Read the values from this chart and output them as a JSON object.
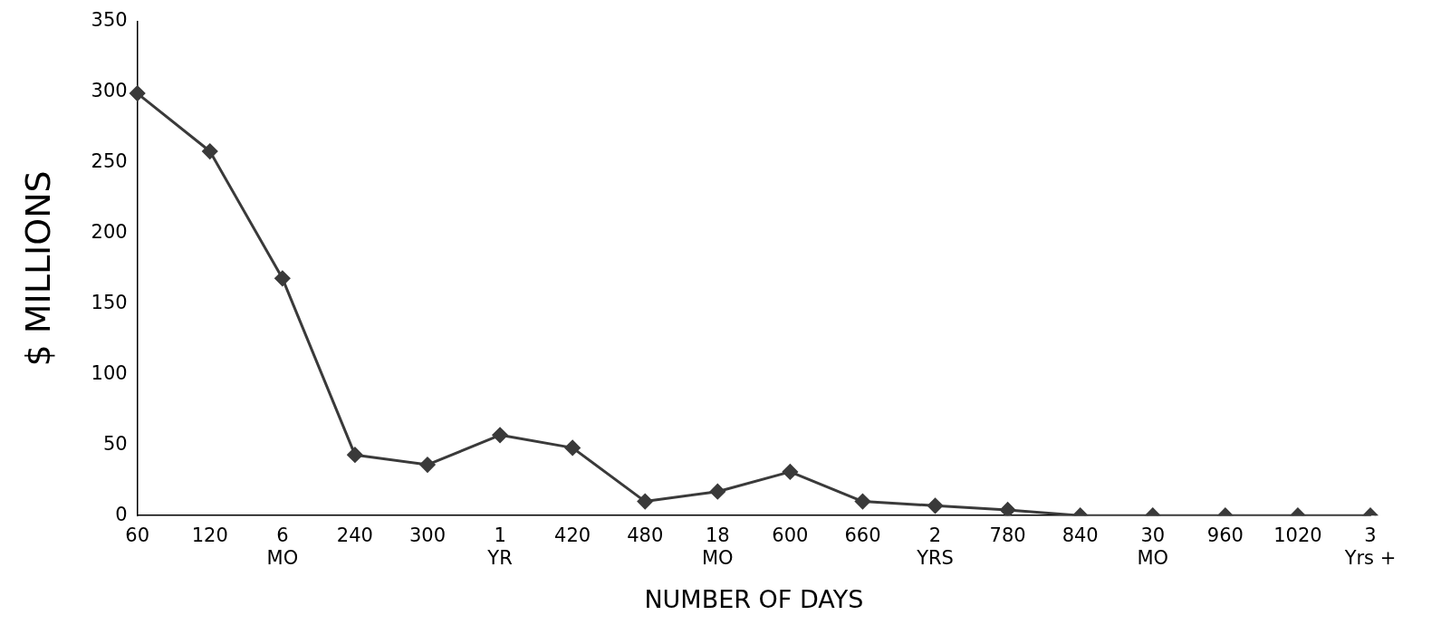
{
  "chart_data": {
    "type": "line",
    "xlabel": "NUMBER OF DAYS",
    "ylabel": "$ MILLIONS",
    "categories": [
      "60",
      "120",
      "6 MO",
      "240",
      "300",
      "1 YR",
      "420",
      "480",
      "18 MO",
      "600",
      "660",
      "2 YRS",
      "780",
      "840",
      "30 MO",
      "960",
      "1020",
      "3 Yrs +"
    ],
    "series": [
      {
        "color": "#3a3a3a",
        "values": [
          299,
          258,
          168,
          43,
          36,
          57,
          48,
          10,
          17,
          31,
          10,
          7,
          4,
          0,
          0,
          0,
          0,
          0
        ]
      }
    ],
    "ylim": [
      0,
      350
    ],
    "yticks": [
      0,
      50,
      100,
      150,
      200,
      250,
      300,
      350
    ],
    "grid": false,
    "legend": false,
    "marker": "diamond",
    "line_style": "solid"
  }
}
